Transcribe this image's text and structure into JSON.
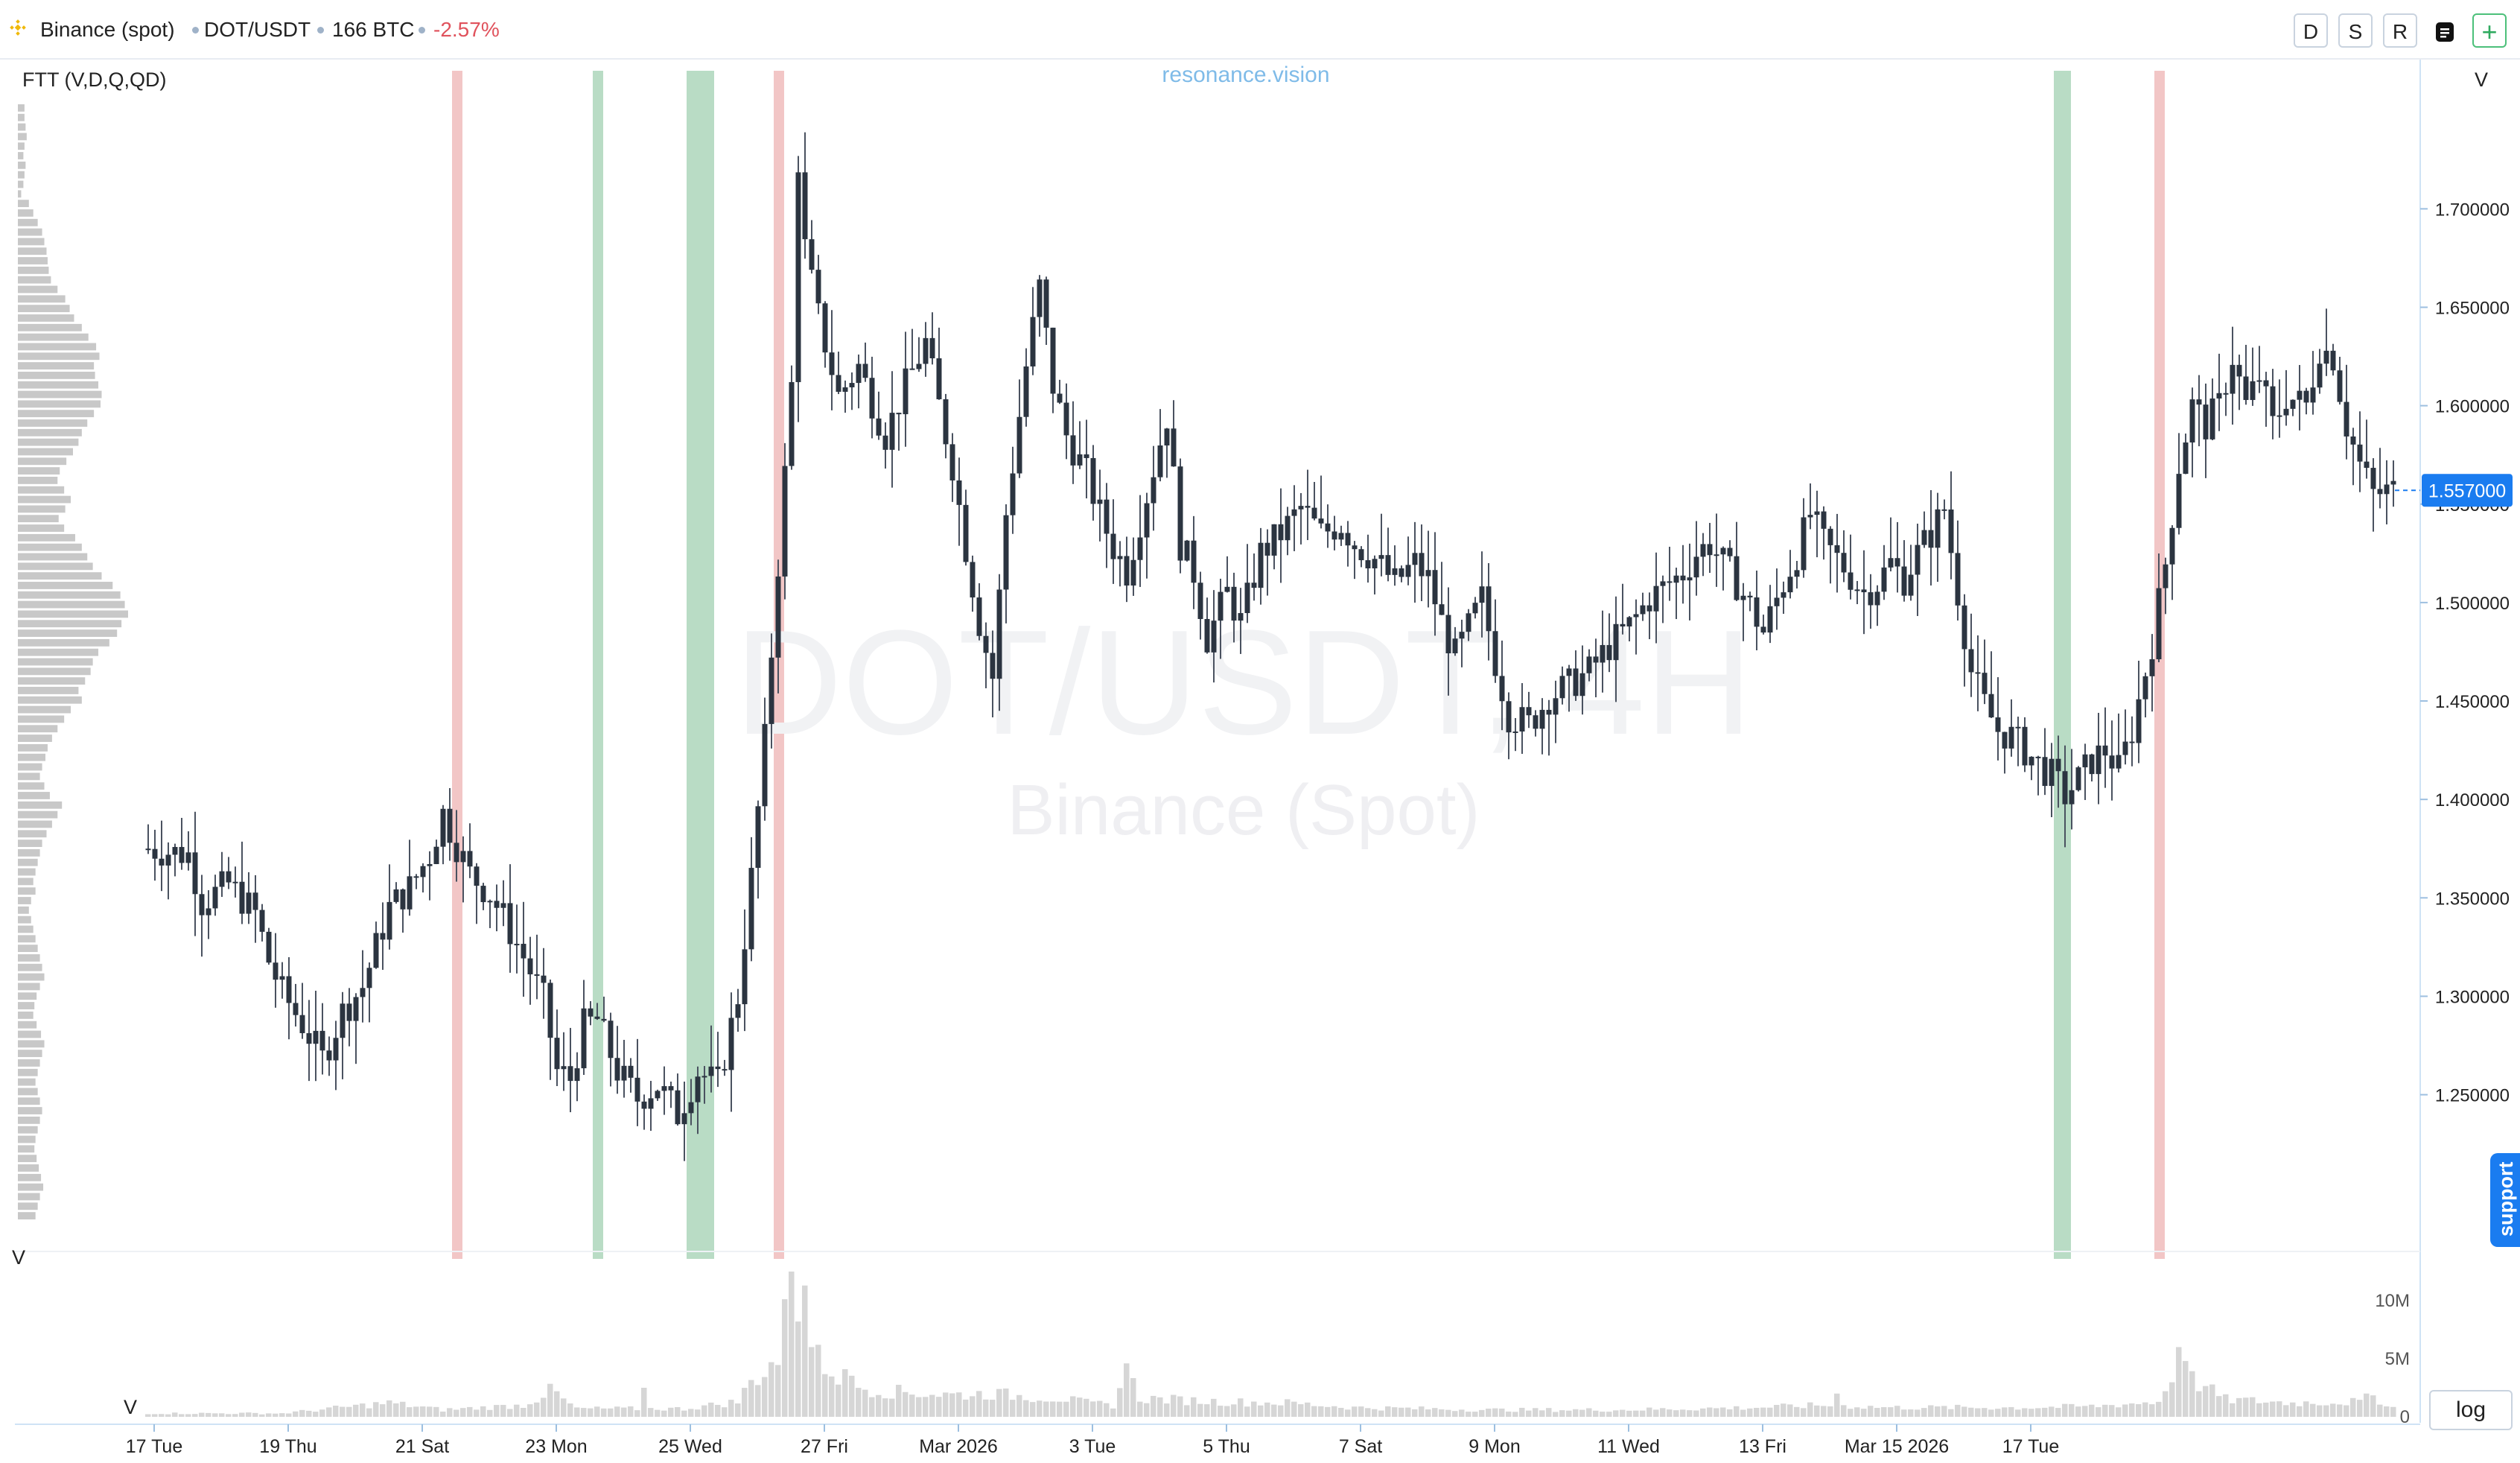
{
  "header": {
    "exchange": "Binance (spot)",
    "symbol": "DOT/USDT",
    "volume": "166 BTC",
    "change": "-2.57%",
    "change_color": "#e0525c",
    "buttons": [
      "D",
      "S",
      "R"
    ],
    "menu_icon": "document-icon",
    "add_icon": "plus-icon"
  },
  "chart": {
    "indicator_label": "FTT (V,D,Q,QD)",
    "watermark_brand": "resonance.vision",
    "watermark_pair": "DOT/USDT, 4H",
    "watermark_exchange": "Binance (Spot)",
    "price_axis_header": "V",
    "volume_pane_label": "V",
    "profile_label": "V",
    "current_price": "1.557000",
    "support_label": "support",
    "log_label": "log",
    "colors": {
      "up": "#2b3440",
      "down": "#2b3440",
      "bull_band": "#b9dcc5",
      "bear_band": "#f2c6c6",
      "volume": "#d6d6d6",
      "accent": "#1a7cf0"
    }
  },
  "chart_data": {
    "type": "candlestick",
    "interval": "4H",
    "x_ticks": [
      "17 Tue",
      "19 Thu",
      "21 Sat",
      "23 Mon",
      "25 Wed",
      "27 Fri",
      "Mar 2026",
      "3 Tue",
      "5 Thu",
      "7 Sat",
      "9 Mon",
      "11 Wed",
      "13 Fri",
      "Mar 15 2026",
      "17 Tue"
    ],
    "price_ticks": [
      "1.700000",
      "1.650000",
      "1.600000",
      "1.550000",
      "1.500000",
      "1.450000",
      "1.400000",
      "1.350000",
      "1.300000",
      "1.250000"
    ],
    "price_tick_values": [
      1.7,
      1.65,
      1.6,
      1.55,
      1.5,
      1.45,
      1.4,
      1.35,
      1.3,
      1.25
    ],
    "ylim": [
      1.205,
      1.755
    ],
    "last_price": 1.557,
    "volume_ticks": [
      "10M",
      "5M",
      "0"
    ],
    "volume_tick_values": [
      10,
      5,
      0
    ],
    "volume_unit": "M",
    "close_path": [
      [
        0,
        1.375
      ],
      [
        6,
        1.372
      ],
      [
        8,
        1.348
      ],
      [
        12,
        1.357
      ],
      [
        16,
        1.342
      ],
      [
        18,
        1.318
      ],
      [
        20,
        1.302
      ],
      [
        23,
        1.286
      ],
      [
        26,
        1.268
      ],
      [
        29,
        1.292
      ],
      [
        32,
        1.305
      ],
      [
        36,
        1.345
      ],
      [
        39,
        1.355
      ],
      [
        42,
        1.372
      ],
      [
        44,
        1.393
      ],
      [
        46,
        1.377
      ],
      [
        48,
        1.362
      ],
      [
        51,
        1.352
      ],
      [
        53,
        1.34
      ],
      [
        56,
        1.32
      ],
      [
        59,
        1.298
      ],
      [
        61,
        1.262
      ],
      [
        63,
        1.258
      ],
      [
        65,
        1.285
      ],
      [
        67,
        1.288
      ],
      [
        70,
        1.262
      ],
      [
        73,
        1.248
      ],
      [
        76,
        1.255
      ],
      [
        79,
        1.24
      ],
      [
        82,
        1.262
      ],
      [
        85,
        1.255
      ],
      [
        88,
        1.3
      ],
      [
        90,
        1.36
      ],
      [
        92,
        1.43
      ],
      [
        94,
        1.52
      ],
      [
        96,
        1.61
      ],
      [
        97,
        1.725
      ],
      [
        98,
        1.68
      ],
      [
        100,
        1.645
      ],
      [
        103,
        1.605
      ],
      [
        106,
        1.62
      ],
      [
        110,
        1.585
      ],
      [
        113,
        1.61
      ],
      [
        116,
        1.632
      ],
      [
        118,
        1.6
      ],
      [
        120,
        1.57
      ],
      [
        122,
        1.528
      ],
      [
        124,
        1.49
      ],
      [
        126,
        1.462
      ],
      [
        128,
        1.545
      ],
      [
        131,
        1.62
      ],
      [
        133,
        1.66
      ],
      [
        135,
        1.61
      ],
      [
        137,
        1.585
      ],
      [
        140,
        1.565
      ],
      [
        142,
        1.545
      ],
      [
        144,
        1.528
      ],
      [
        146,
        1.516
      ],
      [
        149,
        1.555
      ],
      [
        152,
        1.595
      ],
      [
        154,
        1.53
      ],
      [
        156,
        1.515
      ],
      [
        158,
        1.482
      ],
      [
        161,
        1.505
      ],
      [
        163,
        1.49
      ],
      [
        166,
        1.525
      ],
      [
        169,
        1.535
      ],
      [
        172,
        1.548
      ],
      [
        175,
        1.535
      ],
      [
        178,
        1.54
      ],
      [
        180,
        1.53
      ],
      [
        183,
        1.522
      ],
      [
        186,
        1.51
      ],
      [
        189,
        1.52
      ],
      [
        191,
        1.512
      ],
      [
        193,
        1.49
      ],
      [
        195,
        1.473
      ],
      [
        197,
        1.487
      ],
      [
        199,
        1.502
      ],
      [
        201,
        1.47
      ],
      [
        203,
        1.443
      ],
      [
        206,
        1.438
      ],
      [
        209,
        1.452
      ],
      [
        212,
        1.458
      ],
      [
        215,
        1.465
      ],
      [
        218,
        1.478
      ],
      [
        221,
        1.488
      ],
      [
        224,
        1.502
      ],
      [
        227,
        1.51
      ],
      [
        229,
        1.515
      ],
      [
        231,
        1.525
      ],
      [
        233,
        1.53
      ],
      [
        235,
        1.52
      ],
      [
        237,
        1.51
      ],
      [
        239,
        1.498
      ],
      [
        241,
        1.485
      ],
      [
        244,
        1.51
      ],
      [
        246,
        1.525
      ],
      [
        248,
        1.545
      ],
      [
        250,
        1.53
      ],
      [
        253,
        1.518
      ],
      [
        256,
        1.505
      ],
      [
        258,
        1.51
      ],
      [
        260,
        1.52
      ],
      [
        262,
        1.512
      ],
      [
        264,
        1.525
      ],
      [
        266,
        1.535
      ],
      [
        268,
        1.548
      ],
      [
        270,
        1.505
      ],
      [
        272,
        1.465
      ],
      [
        274,
        1.448
      ],
      [
        276,
        1.435
      ],
      [
        278,
        1.432
      ],
      [
        280,
        1.425
      ],
      [
        282,
        1.418
      ],
      [
        284,
        1.412
      ],
      [
        286,
        1.402
      ],
      [
        288,
        1.41
      ],
      [
        290,
        1.42
      ],
      [
        292,
        1.425
      ],
      [
        294,
        1.415
      ],
      [
        296,
        1.435
      ],
      [
        299,
        1.48
      ],
      [
        301,
        1.52
      ],
      [
        303,
        1.57
      ],
      [
        305,
        1.6
      ],
      [
        307,
        1.59
      ],
      [
        309,
        1.6
      ],
      [
        311,
        1.625
      ],
      [
        313,
        1.6
      ],
      [
        315,
        1.615
      ],
      [
        317,
        1.59
      ],
      [
        319,
        1.605
      ],
      [
        322,
        1.6
      ],
      [
        324,
        1.63
      ],
      [
        326,
        1.625
      ],
      [
        328,
        1.59
      ],
      [
        330,
        1.57
      ],
      [
        332,
        1.555
      ],
      [
        335,
        1.557
      ]
    ],
    "volume_path": [
      [
        0,
        0.3
      ],
      [
        20,
        0.3
      ],
      [
        36,
        1.2
      ],
      [
        44,
        0.6
      ],
      [
        56,
        1.0
      ],
      [
        60,
        2.2
      ],
      [
        64,
        0.7
      ],
      [
        80,
        0.7
      ],
      [
        88,
        1.3
      ],
      [
        90,
        3.0
      ],
      [
        94,
        5.0
      ],
      [
        96,
        11.2
      ],
      [
        98,
        8.0
      ],
      [
        100,
        5.0
      ],
      [
        103,
        3.5
      ],
      [
        106,
        2.6
      ],
      [
        110,
        2.2
      ],
      [
        120,
        1.9
      ],
      [
        126,
        2.0
      ],
      [
        130,
        1.8
      ],
      [
        136,
        1.6
      ],
      [
        140,
        1.2
      ],
      [
        144,
        1.0
      ],
      [
        146,
        4.0
      ],
      [
        148,
        1.6
      ],
      [
        160,
        1.3
      ],
      [
        170,
        1.2
      ],
      [
        180,
        0.8
      ],
      [
        200,
        0.6
      ],
      [
        220,
        0.6
      ],
      [
        240,
        0.8
      ],
      [
        250,
        1.0
      ],
      [
        260,
        0.8
      ],
      [
        280,
        0.8
      ],
      [
        290,
        0.9
      ],
      [
        300,
        1.3
      ],
      [
        303,
        5.0
      ],
      [
        305,
        3.2
      ],
      [
        310,
        1.5
      ],
      [
        320,
        1.2
      ],
      [
        330,
        1.3
      ],
      [
        332,
        1.8
      ],
      [
        335,
        0.8
      ]
    ],
    "volume_spikes": [
      [
        61,
        2.2
      ],
      [
        74,
        2.5
      ],
      [
        96,
        12.5
      ],
      [
        97,
        8.2
      ],
      [
        98,
        11.3
      ],
      [
        99,
        6.0
      ],
      [
        100,
        6.2
      ],
      [
        104,
        4.1
      ],
      [
        146,
        4.6
      ],
      [
        252,
        2.0
      ],
      [
        303,
        6.0
      ],
      [
        304,
        4.8
      ]
    ],
    "bull_bands": [
      [
        67,
        1
      ],
      [
        81,
        1
      ],
      [
        82,
        2
      ],
      [
        285,
        1
      ],
      [
        286,
        1
      ]
    ],
    "bear_bands": [
      [
        46,
        1
      ],
      [
        94,
        1
      ],
      [
        300,
        1
      ]
    ],
    "volume_profile_levels_top_to_bottom": [
      0.06,
      0.06,
      0.07,
      0.08,
      0.06,
      0.05,
      0.07,
      0.06,
      0.05,
      0.03,
      0.1,
      0.14,
      0.18,
      0.22,
      0.24,
      0.26,
      0.27,
      0.28,
      0.3,
      0.36,
      0.43,
      0.47,
      0.51,
      0.58,
      0.64,
      0.71,
      0.74,
      0.69,
      0.7,
      0.73,
      0.76,
      0.75,
      0.69,
      0.63,
      0.58,
      0.55,
      0.5,
      0.44,
      0.38,
      0.36,
      0.42,
      0.48,
      0.43,
      0.37,
      0.42,
      0.52,
      0.58,
      0.63,
      0.68,
      0.76,
      0.86,
      0.93,
      0.97,
      1.0,
      0.94,
      0.9,
      0.83,
      0.73,
      0.68,
      0.66,
      0.61,
      0.55,
      0.58,
      0.48,
      0.42,
      0.36,
      0.31,
      0.27,
      0.25,
      0.22,
      0.2,
      0.24,
      0.29,
      0.4,
      0.36,
      0.31,
      0.26,
      0.22,
      0.2,
      0.18,
      0.16,
      0.14,
      0.16,
      0.12,
      0.1,
      0.12,
      0.14,
      0.16,
      0.18,
      0.2,
      0.22,
      0.24,
      0.2,
      0.17,
      0.15,
      0.14,
      0.17,
      0.21,
      0.24,
      0.22,
      0.2,
      0.18,
      0.16,
      0.18,
      0.2,
      0.22,
      0.2,
      0.18,
      0.16,
      0.15,
      0.17,
      0.19,
      0.21,
      0.23,
      0.2,
      0.18,
      0.16
    ]
  }
}
